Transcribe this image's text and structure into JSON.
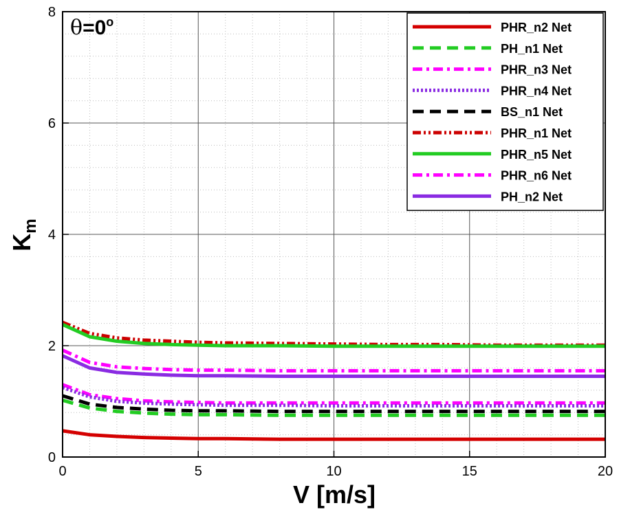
{
  "chart_data": {
    "type": "line",
    "title": "",
    "annotation": {
      "theta": "θ",
      "eq": "=0",
      "sup": "o"
    },
    "xlabel": "V [m/s]",
    "ylabel": {
      "main": "K",
      "sub": "m"
    },
    "xlim": [
      0,
      20
    ],
    "ylim": [
      0,
      8
    ],
    "xticks": [
      0,
      5,
      10,
      15,
      20
    ],
    "yticks": [
      0,
      2,
      4,
      6,
      8
    ],
    "x_minor_step": 1,
    "y_minor_step": 0.4,
    "grid": true,
    "legend_position": "top-right",
    "x": [
      0,
      1,
      2,
      3,
      4,
      5,
      6,
      8,
      10,
      12,
      14,
      16,
      18,
      20
    ],
    "series": [
      {
        "name": "PHR_n2 Net",
        "color": "#d40000",
        "dash": "solid",
        "values": [
          0.47,
          0.4,
          0.37,
          0.35,
          0.34,
          0.33,
          0.33,
          0.32,
          0.32,
          0.32,
          0.32,
          0.32,
          0.32,
          0.32
        ]
      },
      {
        "name": "PH_n1 Net",
        "color": "#22cc22",
        "dash": "dash",
        "values": [
          1.02,
          0.88,
          0.82,
          0.79,
          0.77,
          0.76,
          0.76,
          0.75,
          0.75,
          0.75,
          0.75,
          0.75,
          0.75,
          0.75
        ]
      },
      {
        "name": "PHR_n3 Net",
        "color": "#ff00ff",
        "dash": "dashdot",
        "values": [
          1.3,
          1.12,
          1.05,
          1.01,
          0.99,
          0.98,
          0.97,
          0.97,
          0.97,
          0.97,
          0.97,
          0.97,
          0.97,
          0.97
        ]
      },
      {
        "name": "PHR_n4 Net",
        "color": "#8a2be2",
        "dash": "dotted",
        "values": [
          1.25,
          1.08,
          1.0,
          0.97,
          0.95,
          0.94,
          0.93,
          0.93,
          0.92,
          0.92,
          0.92,
          0.92,
          0.92,
          0.92
        ]
      },
      {
        "name": "BS_n1 Net",
        "color": "#000000",
        "dash": "dash",
        "values": [
          1.1,
          0.95,
          0.89,
          0.86,
          0.84,
          0.83,
          0.83,
          0.82,
          0.82,
          0.82,
          0.82,
          0.82,
          0.82,
          0.82
        ]
      },
      {
        "name": "PHR_n1 Net",
        "color": "#cc0000",
        "dash": "dashdotdot",
        "values": [
          2.42,
          2.22,
          2.14,
          2.1,
          2.08,
          2.06,
          2.05,
          2.04,
          2.03,
          2.02,
          2.02,
          2.01,
          2.01,
          2.01
        ]
      },
      {
        "name": "PHR_n5 Net",
        "color": "#22cc22",
        "dash": "solid",
        "values": [
          2.38,
          2.16,
          2.08,
          2.04,
          2.02,
          2.01,
          2.0,
          2.0,
          1.99,
          1.99,
          1.99,
          1.99,
          1.99,
          1.99
        ]
      },
      {
        "name": "PHR_n6 Net",
        "color": "#ff00ff",
        "dash": "dashdot",
        "values": [
          1.92,
          1.7,
          1.62,
          1.59,
          1.57,
          1.56,
          1.56,
          1.55,
          1.55,
          1.55,
          1.55,
          1.55,
          1.55,
          1.55
        ]
      },
      {
        "name": "PH_n2 Net",
        "color": "#8a2be2",
        "dash": "solid",
        "values": [
          1.82,
          1.6,
          1.52,
          1.49,
          1.47,
          1.46,
          1.46,
          1.45,
          1.45,
          1.45,
          1.45,
          1.45,
          1.45,
          1.45
        ]
      }
    ]
  }
}
